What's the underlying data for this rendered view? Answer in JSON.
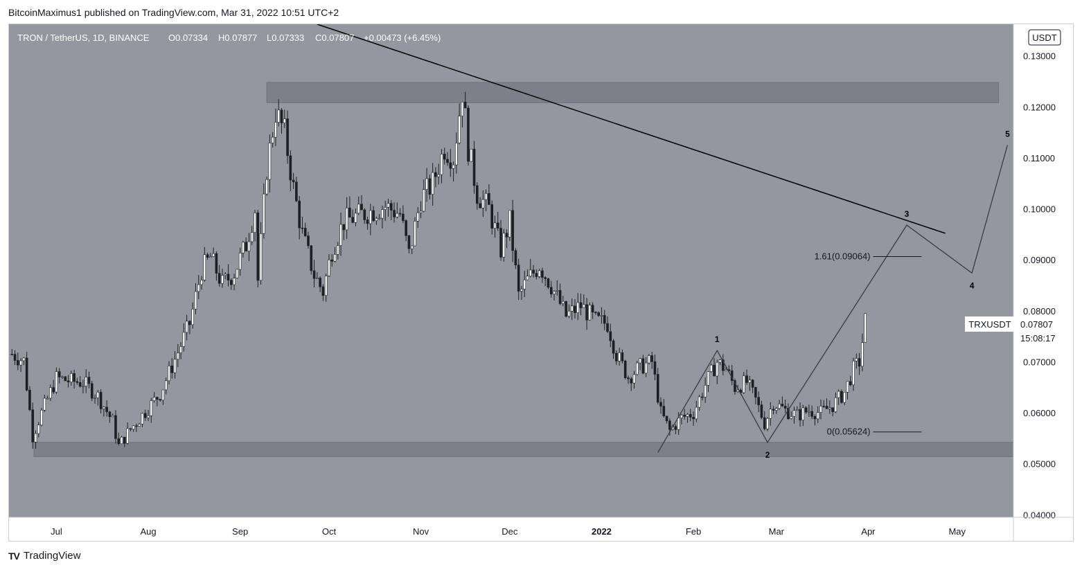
{
  "publisher": "BitcoinMaximus1 published on TradingView.com, Mar 31, 2022 10:51 UTC+2",
  "footer": {
    "brand": "TradingView",
    "mark": "TV"
  },
  "header": {
    "symbol": "TRON / TetherUS, 1D, BINANCE",
    "open": "O0.07334",
    "high": "H0.07877",
    "low": "L0.07333",
    "close": "C0.07807",
    "change": "+0.00473 (+6.45%)"
  },
  "currency_badge": "USDT",
  "price_tag": {
    "symbol": "TRXUSDT",
    "price": "0.07807",
    "countdown": "15:08:17"
  },
  "colors": {
    "plot_bg": "#94979f",
    "zone": "#7d808a",
    "candle": "#ffffff",
    "candle_dark": "#1e1f24",
    "trendline": "#000000",
    "wave": "#3a3c42"
  },
  "chart_data": {
    "type": "candlestick",
    "ylim": [
      0.0395,
      0.1362
    ],
    "y_ticks": [
      "0.13000",
      "0.12000",
      "0.11000",
      "0.10000",
      "0.09000",
      "0.08000",
      "0.07000",
      "0.06000",
      "0.05000",
      "0.04000"
    ],
    "y_tick_values": [
      0.13,
      0.12,
      0.11,
      0.1,
      0.09,
      0.08,
      0.07,
      0.06,
      0.05,
      0.04
    ],
    "x_ticks": [
      "Jul",
      "Aug",
      "Sep",
      "Oct",
      "Nov",
      "Dec",
      "2022",
      "Feb",
      "Mar",
      "Apr",
      "May"
    ],
    "x_tick_dates": [
      "2021-07-01",
      "2021-08-01",
      "2021-09-01",
      "2021-10-01",
      "2021-11-01",
      "2021-12-01",
      "2022-01-01",
      "2022-02-01",
      "2022-03-01",
      "2022-04-01",
      "2022-05-01"
    ],
    "x_range": [
      "2021-06-15",
      "2022-05-20"
    ],
    "close_series": [
      [
        "2021-06-16",
        0.0715
      ],
      [
        "2021-06-20",
        0.0702
      ],
      [
        "2021-06-23",
        0.0555
      ],
      [
        "2021-06-26",
        0.06
      ],
      [
        "2021-07-01",
        0.0668
      ],
      [
        "2021-07-06",
        0.0662
      ],
      [
        "2021-07-10",
        0.066
      ],
      [
        "2021-07-15",
        0.0633
      ],
      [
        "2021-07-20",
        0.0583
      ],
      [
        "2021-07-22",
        0.0535
      ],
      [
        "2021-07-26",
        0.0568
      ],
      [
        "2021-07-31",
        0.0602
      ],
      [
        "2021-08-05",
        0.0638
      ],
      [
        "2021-08-10",
        0.0705
      ],
      [
        "2021-08-15",
        0.0775
      ],
      [
        "2021-08-19",
        0.088
      ],
      [
        "2021-08-22",
        0.0905
      ],
      [
        "2021-08-26",
        0.0852
      ],
      [
        "2021-08-30",
        0.0875
      ],
      [
        "2021-09-03",
        0.093
      ],
      [
        "2021-09-06",
        0.1
      ],
      [
        "2021-09-07",
        0.086
      ],
      [
        "2021-09-10",
        0.108
      ],
      [
        "2021-09-13",
        0.119
      ],
      [
        "2021-09-16",
        0.115
      ],
      [
        "2021-09-19",
        0.104
      ],
      [
        "2021-09-22",
        0.095
      ],
      [
        "2021-09-26",
        0.087
      ],
      [
        "2021-09-29",
        0.0838
      ],
      [
        "2021-10-02",
        0.092
      ],
      [
        "2021-10-06",
        0.0975
      ],
      [
        "2021-10-10",
        0.0985
      ],
      [
        "2021-10-15",
        0.0995
      ],
      [
        "2021-10-20",
        0.1005
      ],
      [
        "2021-10-25",
        0.099
      ],
      [
        "2021-10-28",
        0.091
      ],
      [
        "2021-11-01",
        0.102
      ],
      [
        "2021-11-05",
        0.105
      ],
      [
        "2021-11-09",
        0.112
      ],
      [
        "2021-11-12",
        0.11
      ],
      [
        "2021-11-15",
        0.1232
      ],
      [
        "2021-11-17",
        0.112
      ],
      [
        "2021-11-20",
        0.103
      ],
      [
        "2021-11-24",
        0.1
      ],
      [
        "2021-11-28",
        0.092
      ],
      [
        "2021-12-01",
        0.0975
      ],
      [
        "2021-12-04",
        0.083
      ],
      [
        "2021-12-07",
        0.086
      ],
      [
        "2021-12-11",
        0.089
      ],
      [
        "2021-12-15",
        0.085
      ],
      [
        "2021-12-20",
        0.079
      ],
      [
        "2021-12-25",
        0.081
      ],
      [
        "2021-12-30",
        0.078
      ],
      [
        "2022-01-03",
        0.0775
      ],
      [
        "2022-01-06",
        0.0715
      ],
      [
        "2022-01-10",
        0.067
      ],
      [
        "2022-01-14",
        0.069
      ],
      [
        "2022-01-18",
        0.07
      ],
      [
        "2022-01-21",
        0.06
      ],
      [
        "2022-01-24",
        0.0565
      ],
      [
        "2022-01-28",
        0.059
      ],
      [
        "2022-02-01",
        0.06
      ],
      [
        "2022-02-05",
        0.0655
      ],
      [
        "2022-02-09",
        0.07
      ],
      [
        "2022-02-12",
        0.0685
      ],
      [
        "2022-02-15",
        0.065
      ],
      [
        "2022-02-19",
        0.066
      ],
      [
        "2022-02-22",
        0.0625
      ],
      [
        "2022-02-25",
        0.058
      ],
      [
        "2022-02-28",
        0.062
      ],
      [
        "2022-03-04",
        0.0605
      ],
      [
        "2022-03-08",
        0.0595
      ],
      [
        "2022-03-12",
        0.0605
      ],
      [
        "2022-03-16",
        0.06
      ],
      [
        "2022-03-20",
        0.0615
      ],
      [
        "2022-03-24",
        0.064
      ],
      [
        "2022-03-27",
        0.0685
      ],
      [
        "2022-03-29",
        0.07
      ],
      [
        "2022-03-31",
        0.0781
      ]
    ],
    "resistance_zone": [
      0.1208,
      0.1248
    ],
    "support_zone": [
      0.0514,
      0.0542
    ],
    "descending_trendline": [
      [
        "2021-09-27",
        0.1362
      ],
      [
        "2022-04-27",
        0.0952
      ]
    ],
    "elliott_wave": [
      {
        "date": "2022-01-20",
        "value": 0.0522
      },
      {
        "date": "2022-02-09",
        "value": 0.0722,
        "label": "1"
      },
      {
        "date": "2022-02-26",
        "value": 0.0542,
        "label": "2"
      },
      {
        "date": "2022-04-14",
        "value": 0.0968,
        "label": "3"
      },
      {
        "date": "2022-05-06",
        "value": 0.0874,
        "label": "4"
      },
      {
        "date": "2022-05-18",
        "value": 0.1125,
        "label": "5"
      }
    ],
    "fib_levels": [
      {
        "label": "1.61(0.09064)",
        "value": 0.09064
      },
      {
        "label": "0(0.05624)",
        "value": 0.05624
      }
    ]
  }
}
